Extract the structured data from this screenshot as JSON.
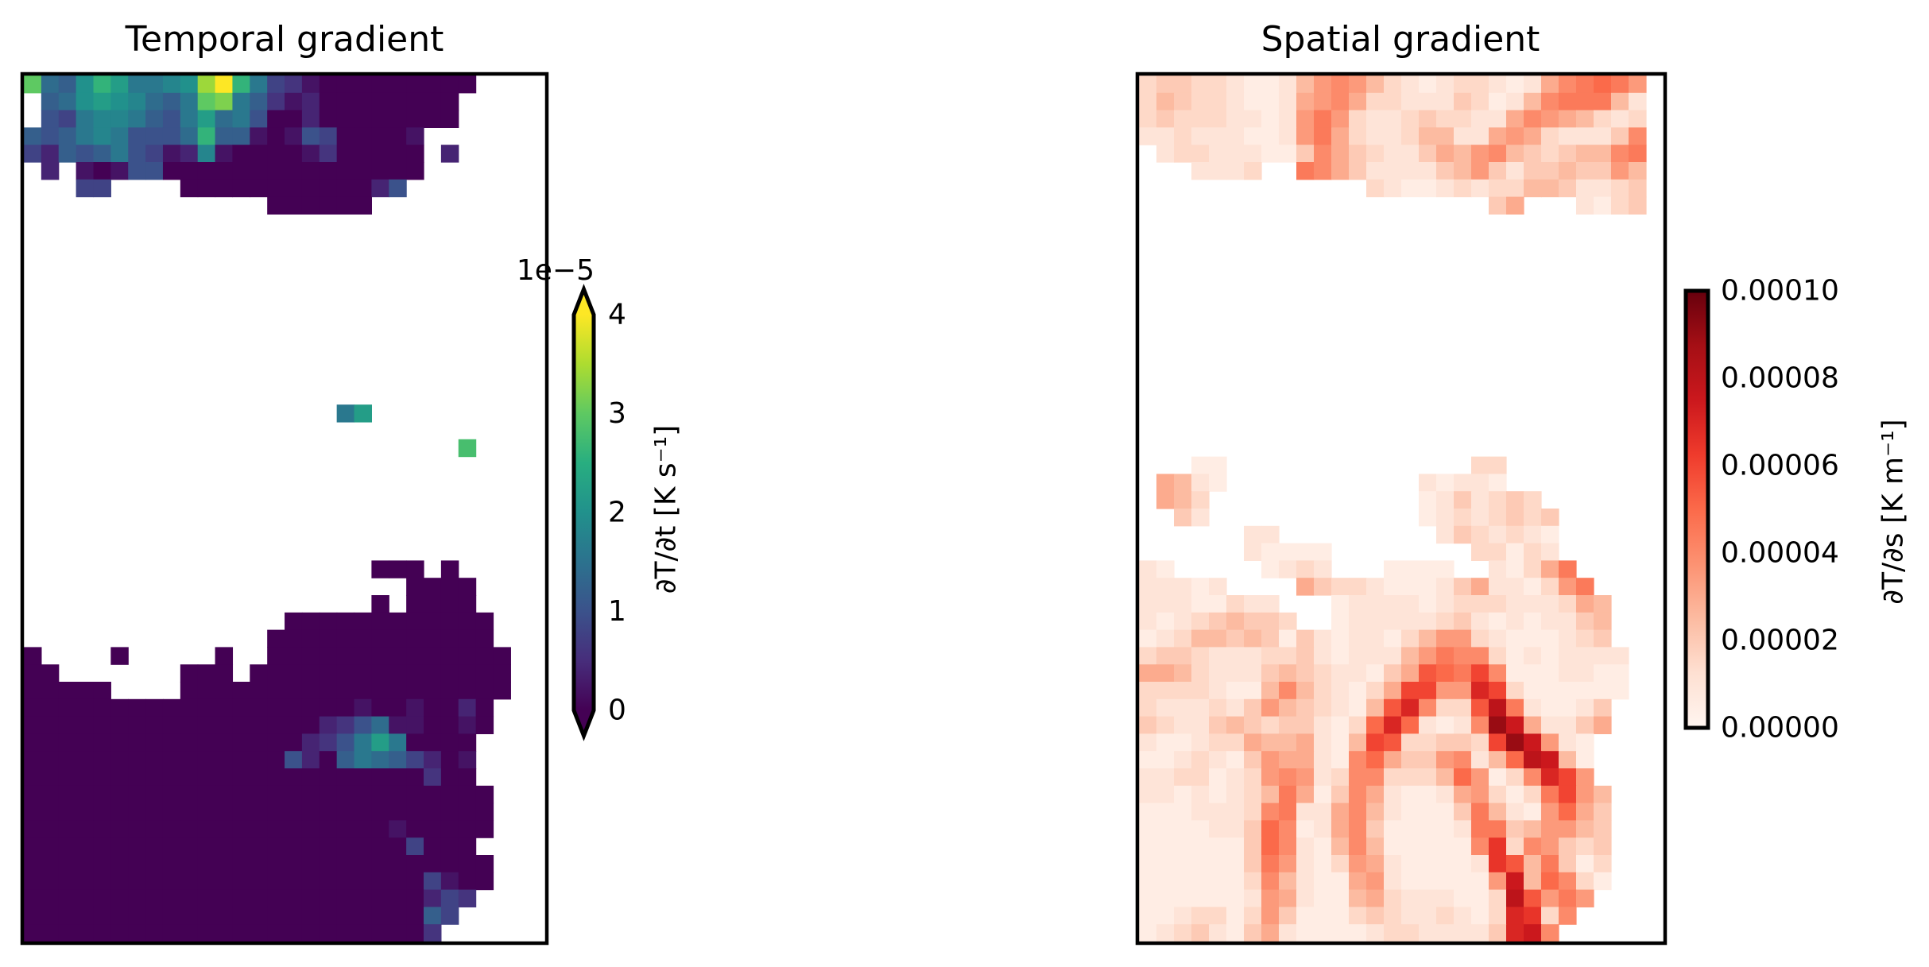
{
  "chart_data": [
    {
      "type": "heatmap",
      "title": "Temporal gradient",
      "xlabel": "",
      "ylabel": "",
      "n_rows": 50,
      "n_cols": 30,
      "colormap": "viridis",
      "colormap_stops": [
        "#440154",
        "#472d7b",
        "#3b528b",
        "#2c728e",
        "#21918c",
        "#28ae80",
        "#5ec962",
        "#addc30",
        "#fde725"
      ],
      "vmin": 0,
      "vmax": 4e-05,
      "extend": "both",
      "encoding": {
        "level_chars": "0123456789ABCDEFGHIJK",
        "value_per_level": 2e-06,
        "nan_char": "."
      },
      "rows": [
        "F76ADB889AHKD8431000000000....",
        ".67ABA9768FG8631200000000.....",
        ".548998658B78500200000000.....",
        "6568985557D661015400001.......",
        "42656854129100001300000 2......",
        ".2.10155000000000000000.......",
        "...44....0000000000025........",
        "..............000000..........",
        "..............................",
        "..............................",
        "..............................",
        "..............................",
        "..............................",
        "..............................",
        "..............................",
        "..............................",
        "..............................",
        "..............................",
        "..............................",
        "..................8B..........",
        "..............................",
        ".........................E....",
        "..............................",
        "..............................",
        "..............................",
        "..............................",
        "..............................",
        "..............................",
        "....................000.0.....",
        "......................0000....",
        "....................0.0000....",
        "...............000000000000...",
        "..............0000000000000...",
        "0....0.....0..00000000000000..",
        "00.......000.000000000000000..",
        "00000....0000000000000000000..",
        "000000000000000000010010020...",
        "000000000000000002357110010...",
        "00000000000000002358B80000....",
        "00000000000000052068764201....",
        "00000000000000000000000300....",
        "000000000000000000000000000...",
        "000000000000000000000000000...",
        "000000000000000000000100000...",
        "00000000000000000000004000....",
        "000000000000000000000000000...",
        "000000000000000000000004100...",
        "00000000000000000000000243....",
        "0000000000000000000000064.....",
        "000000000000000000000003......"
      ],
      "colorbar": {
        "label": "∂T/∂t [K s⁻¹]",
        "offset_text": "1e−5",
        "ticks": [
          {
            "value": 0,
            "label": "0"
          },
          {
            "value": 1e-05,
            "label": "1"
          },
          {
            "value": 2e-05,
            "label": "2"
          },
          {
            "value": 3e-05,
            "label": "3"
          },
          {
            "value": 4e-05,
            "label": "4"
          }
        ]
      }
    },
    {
      "type": "heatmap",
      "title": "Spatial gradient",
      "xlabel": "",
      "ylabel": "",
      "n_rows": 50,
      "n_cols": 30,
      "colormap": "Reds",
      "colormap_stops": [
        "#fff5f0",
        "#fee0d2",
        "#fcbba1",
        "#fc9272",
        "#fb6a4a",
        "#ef3b2c",
        "#cb181d",
        "#a50f15",
        "#67000d"
      ],
      "vmin": 0,
      "vmax": 0.0001,
      "extend": "neither",
      "encoding": {
        "level_chars": "0123456789ABCDEFGHIJK",
        "value_per_level": 5e-06,
        "nan_char": "."
      },
      "rows": [
        "34433211257875321233212689A97.",
        "35433211267863322243125899952.",
        "34333221279732234332268765323.",
        "22322211279632235522676322248.",
        ".2332221148643224657854345589.",
        "...2223..98642222457424454475.",
        ".............3211232335542234.",
        "....................46...2134.",
        "..............................",
        "..............................",
        "..............................",
        "..............................",
        "..............................",
        "..............................",
        "..............................",
        "..............................",
        "..............................",
        "..............................",
        "..............................",
        "..............................",
        "..............................",
        "..............................",
        "...11..............33.........",
        ".6521...........21221.........",
        ".653............1242343.......",
        "..42............12323434......",
        "......22.........2432321......",
        "......21111........33132......",
        "21.....1232...1111..21369.....",
        "22212....64332111246221379....",
        "22211322...1222212333222365...",
        "212345443..1222223421212245...",
        "123554541421221357732111234...",
        "3443222334212225798831212222..",
        "6653222454322146BA9C81112211..",
        "333321158532136CC77EC3111111..",
        "32223247543215BE833BG921124...",
        "4322454344213AEA2128IF62246...",
        "2112336556215CB33443CIF721....",
        "1123214766218A6447825AGF51....",
        "223312378723883335A7138EC7....",
        "221212359614862112673139C75...",
        "111222389226852111495217A64...",
        "1111224A8126841111299457754...",
        "1111114A821585111118D387434...",
        "11111149721376211112DB59413...",
        "111111385211672111117F5A831...",
        "111111276211563222113GB797....",
        "112331374111343223213ED38.....",
        "123421462111123322224EF8......"
      ],
      "colorbar": {
        "label": "∂T/∂s [K m⁻¹]",
        "ticks": [
          {
            "value": 0,
            "label": "0.00000"
          },
          {
            "value": 2e-05,
            "label": "0.00002"
          },
          {
            "value": 4e-05,
            "label": "0.00004"
          },
          {
            "value": 6e-05,
            "label": "0.00006"
          },
          {
            "value": 8e-05,
            "label": "0.00008"
          },
          {
            "value": 0.0001,
            "label": "0.00010"
          }
        ]
      }
    }
  ]
}
